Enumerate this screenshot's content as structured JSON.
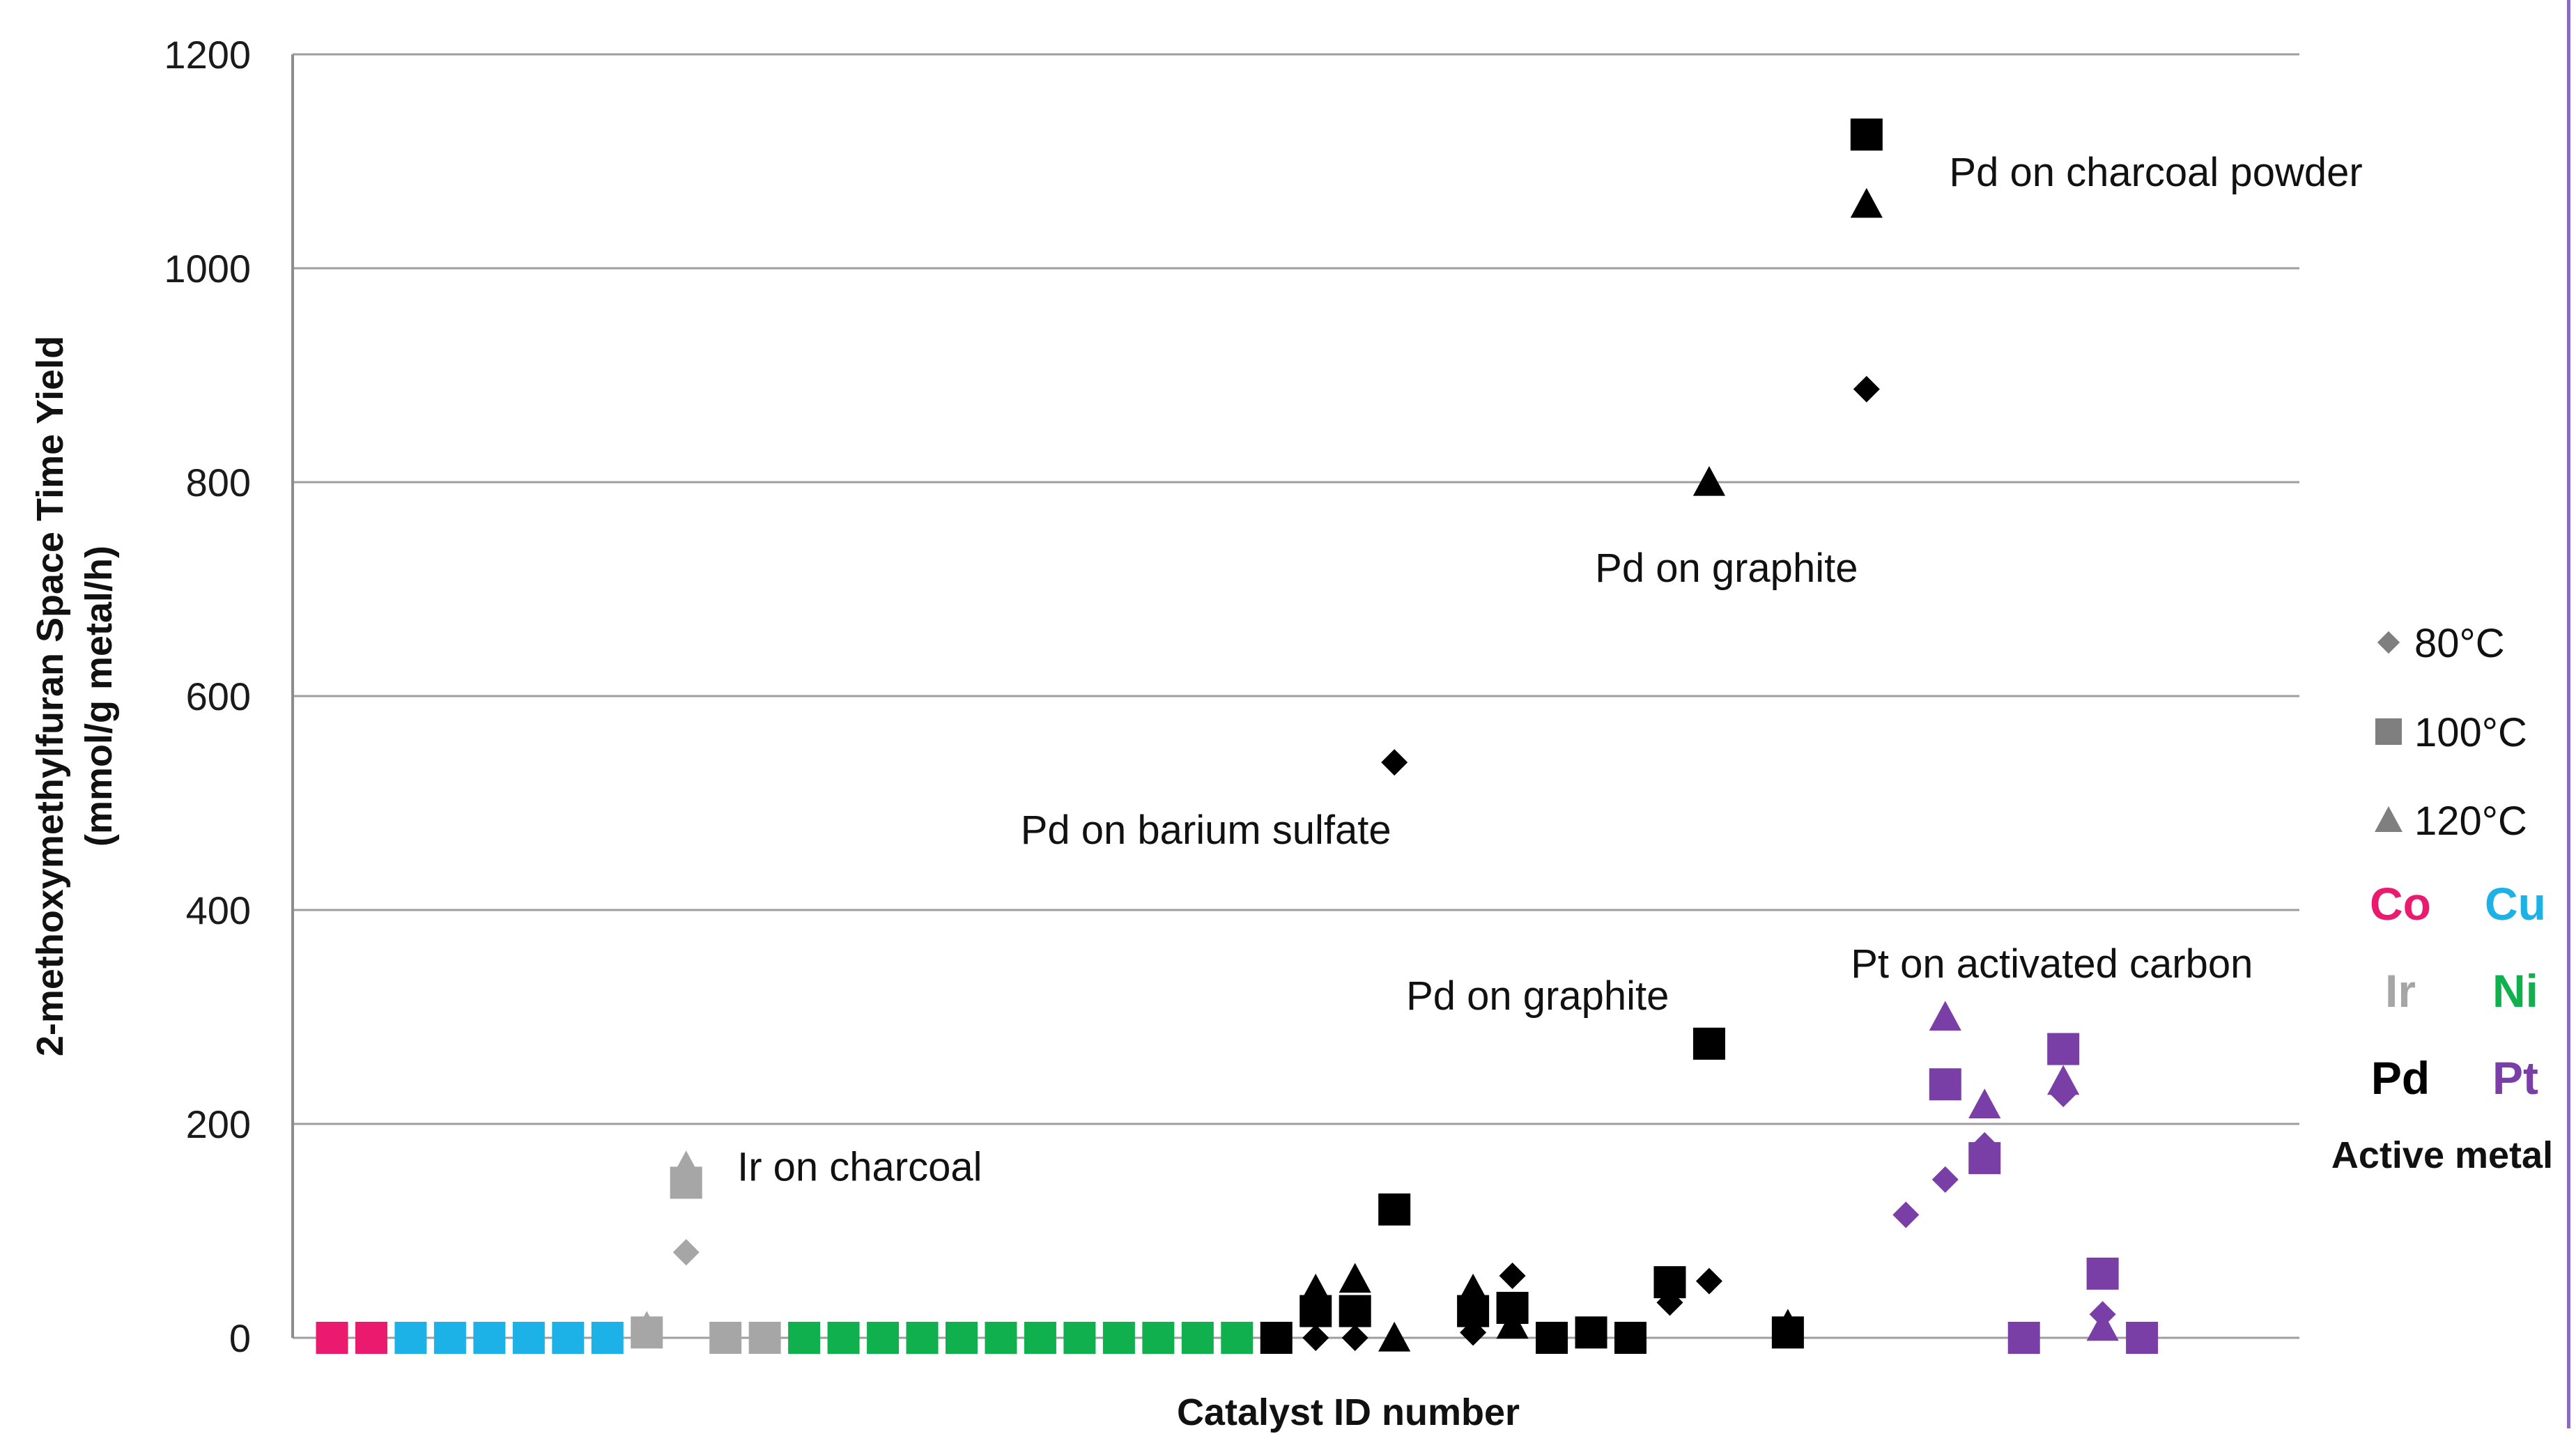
{
  "chart_data": {
    "type": "scatter",
    "title": "",
    "xlabel": "Catalyst ID number",
    "ylabel_line1": "2-methoxymethylfuran Space Time Yield",
    "ylabel_line2": "(mmol/g metal/h)",
    "ylim": [
      0,
      1200
    ],
    "y_ticks": [
      "0",
      "200",
      "400",
      "600",
      "800",
      "1000",
      "1200"
    ],
    "xlim": [
      0,
      51
    ],
    "grid": true,
    "colors": {
      "Co": "#ea1a6e",
      "Cu": "#1cb2e8",
      "Ir": "#a6a6a6",
      "Ni": "#10b04e",
      "Pd": "#000000",
      "Pt": "#7a3fa6"
    },
    "legend": {
      "placement": "right",
      "temperatures": [
        {
          "marker": "diamond",
          "label": "80°C"
        },
        {
          "marker": "square",
          "label": "100°C"
        },
        {
          "marker": "triangle",
          "label": "120°C"
        }
      ],
      "metals": [
        {
          "key": "Co",
          "label": "Co"
        },
        {
          "key": "Cu",
          "label": "Cu"
        },
        {
          "key": "Ir",
          "label": "Ir"
        },
        {
          "key": "Ni",
          "label": "Ni"
        },
        {
          "key": "Pd",
          "label": "Pd"
        },
        {
          "key": "Pt",
          "label": "Pt"
        }
      ],
      "title": "Active metal"
    },
    "annotations": [
      {
        "text": "Pd on charcoal powder",
        "x": 42.1,
        "y": 1090
      },
      {
        "text": "Pd on graphite",
        "x": 33.1,
        "y": 720
      },
      {
        "text": "Pd on barium sulfate",
        "x": 18.5,
        "y": 475
      },
      {
        "text": "Pd on graphite",
        "x": 28.3,
        "y": 320
      },
      {
        "text": "Pt on activated carbon",
        "x": 39.6,
        "y": 350
      },
      {
        "text": "Ir on charcoal",
        "x": 11.3,
        "y": 160
      }
    ],
    "points": [
      {
        "x": 1,
        "y": 0,
        "metal": "Co",
        "temp": "100°C"
      },
      {
        "x": 2,
        "y": 0,
        "metal": "Co",
        "temp": "100°C"
      },
      {
        "x": 3,
        "y": 0,
        "metal": "Cu",
        "temp": "100°C"
      },
      {
        "x": 4,
        "y": 0,
        "metal": "Cu",
        "temp": "100°C"
      },
      {
        "x": 5,
        "y": 0,
        "metal": "Cu",
        "temp": "100°C"
      },
      {
        "x": 6,
        "y": 0,
        "metal": "Cu",
        "temp": "100°C"
      },
      {
        "x": 7,
        "y": 0,
        "metal": "Cu",
        "temp": "100°C"
      },
      {
        "x": 8,
        "y": 0,
        "metal": "Cu",
        "temp": "100°C"
      },
      {
        "x": 9,
        "y": 5,
        "metal": "Ir",
        "temp": "100°C"
      },
      {
        "x": 9,
        "y": 10,
        "metal": "Ir",
        "temp": "120°C"
      },
      {
        "x": 10,
        "y": 80,
        "metal": "Ir",
        "temp": "80°C"
      },
      {
        "x": 10,
        "y": 145,
        "metal": "Ir",
        "temp": "100°C"
      },
      {
        "x": 10,
        "y": 160,
        "metal": "Ir",
        "temp": "120°C"
      },
      {
        "x": 11,
        "y": 0,
        "metal": "Ir",
        "temp": "100°C"
      },
      {
        "x": 12,
        "y": 0,
        "metal": "Ir",
        "temp": "100°C"
      },
      {
        "x": 13,
        "y": 0,
        "metal": "Ni",
        "temp": "100°C"
      },
      {
        "x": 14,
        "y": 0,
        "metal": "Ni",
        "temp": "100°C"
      },
      {
        "x": 15,
        "y": 0,
        "metal": "Ni",
        "temp": "100°C"
      },
      {
        "x": 16,
        "y": 0,
        "metal": "Ni",
        "temp": "100°C"
      },
      {
        "x": 17,
        "y": 0,
        "metal": "Ni",
        "temp": "100°C"
      },
      {
        "x": 18,
        "y": 0,
        "metal": "Ni",
        "temp": "100°C"
      },
      {
        "x": 19,
        "y": 0,
        "metal": "Ni",
        "temp": "100°C"
      },
      {
        "x": 20,
        "y": 0,
        "metal": "Ni",
        "temp": "100°C"
      },
      {
        "x": 21,
        "y": 0,
        "metal": "Ni",
        "temp": "100°C"
      },
      {
        "x": 22,
        "y": 0,
        "metal": "Ni",
        "temp": "100°C"
      },
      {
        "x": 23,
        "y": 0,
        "metal": "Ni",
        "temp": "100°C"
      },
      {
        "x": 24,
        "y": 0,
        "metal": "Ni",
        "temp": "100°C"
      },
      {
        "x": 25,
        "y": 0,
        "metal": "Pd",
        "temp": "100°C"
      },
      {
        "x": 26,
        "y": 0,
        "metal": "Pd",
        "temp": "80°C"
      },
      {
        "x": 26,
        "y": 25,
        "metal": "Pd",
        "temp": "100°C"
      },
      {
        "x": 26,
        "y": 45,
        "metal": "Pd",
        "temp": "120°C"
      },
      {
        "x": 27,
        "y": 0,
        "metal": "Pd",
        "temp": "80°C"
      },
      {
        "x": 27,
        "y": 25,
        "metal": "Pd",
        "temp": "100°C"
      },
      {
        "x": 27,
        "y": 55,
        "metal": "Pd",
        "temp": "120°C"
      },
      {
        "x": 28,
        "y": 538,
        "metal": "Pd",
        "temp": "80°C"
      },
      {
        "x": 28,
        "y": 120,
        "metal": "Pd",
        "temp": "100°C"
      },
      {
        "x": 28,
        "y": 0,
        "metal": "Pd",
        "temp": "120°C"
      },
      {
        "x": 30,
        "y": 5,
        "metal": "Pd",
        "temp": "80°C"
      },
      {
        "x": 30,
        "y": 25,
        "metal": "Pd",
        "temp": "100°C"
      },
      {
        "x": 30,
        "y": 45,
        "metal": "Pd",
        "temp": "120°C"
      },
      {
        "x": 31,
        "y": 58,
        "metal": "Pd",
        "temp": "80°C"
      },
      {
        "x": 31,
        "y": 28,
        "metal": "Pd",
        "temp": "100°C"
      },
      {
        "x": 31,
        "y": 12,
        "metal": "Pd",
        "temp": "120°C"
      },
      {
        "x": 32,
        "y": 0,
        "metal": "Pd",
        "temp": "100°C"
      },
      {
        "x": 33,
        "y": 5,
        "metal": "Pd",
        "temp": "100°C"
      },
      {
        "x": 34,
        "y": 0,
        "metal": "Pd",
        "temp": "100°C"
      },
      {
        "x": 35,
        "y": 33,
        "metal": "Pd",
        "temp": "80°C"
      },
      {
        "x": 35,
        "y": 52,
        "metal": "Pd",
        "temp": "100°C"
      },
      {
        "x": 36,
        "y": 53,
        "metal": "Pd",
        "temp": "80°C"
      },
      {
        "x": 36,
        "y": 275,
        "metal": "Pd",
        "temp": "100°C"
      },
      {
        "x": 36,
        "y": 800,
        "metal": "Pd",
        "temp": "120°C"
      },
      {
        "x": 38,
        "y": 5,
        "metal": "Pd",
        "temp": "80°C"
      },
      {
        "x": 38,
        "y": 5,
        "metal": "Pd",
        "temp": "100°C"
      },
      {
        "x": 38,
        "y": 12,
        "metal": "Pd",
        "temp": "120°C"
      },
      {
        "x": 40,
        "y": 887,
        "metal": "Pd",
        "temp": "80°C"
      },
      {
        "x": 40,
        "y": 1125,
        "metal": "Pd",
        "temp": "100°C"
      },
      {
        "x": 40,
        "y": 1060,
        "metal": "Pd",
        "temp": "120°C"
      },
      {
        "x": 41,
        "y": 115,
        "metal": "Pt",
        "temp": "80°C"
      },
      {
        "x": 42,
        "y": 148,
        "metal": "Pt",
        "temp": "80°C"
      },
      {
        "x": 42,
        "y": 237,
        "metal": "Pt",
        "temp": "100°C"
      },
      {
        "x": 42,
        "y": 300,
        "metal": "Pt",
        "temp": "120°C"
      },
      {
        "x": 43,
        "y": 180,
        "metal": "Pt",
        "temp": "80°C"
      },
      {
        "x": 43,
        "y": 168,
        "metal": "Pt",
        "temp": "100°C"
      },
      {
        "x": 43,
        "y": 218,
        "metal": "Pt",
        "temp": "120°C"
      },
      {
        "x": 44,
        "y": 0,
        "metal": "Pt",
        "temp": "100°C"
      },
      {
        "x": 45,
        "y": 228,
        "metal": "Pt",
        "temp": "80°C"
      },
      {
        "x": 45,
        "y": 270,
        "metal": "Pt",
        "temp": "100°C"
      },
      {
        "x": 45,
        "y": 240,
        "metal": "Pt",
        "temp": "120°C"
      },
      {
        "x": 46,
        "y": 22,
        "metal": "Pt",
        "temp": "80°C"
      },
      {
        "x": 46,
        "y": 60,
        "metal": "Pt",
        "temp": "100°C"
      },
      {
        "x": 46,
        "y": 10,
        "metal": "Pt",
        "temp": "120°C"
      },
      {
        "x": 47,
        "y": 0,
        "metal": "Pt",
        "temp": "100°C"
      }
    ]
  }
}
